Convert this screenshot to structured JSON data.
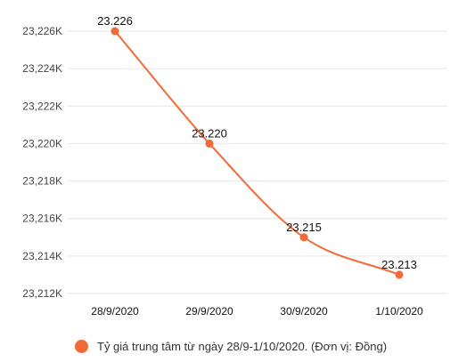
{
  "colors": {
    "series": "#f26a38",
    "grid": "#e6e6e6",
    "axis_text": "#444444",
    "label_text": "#111111"
  },
  "chart_data": {
    "type": "line",
    "title": "",
    "xlabel": "",
    "ylabel": "",
    "categories": [
      "28/9/2020",
      "29/9/2020",
      "30/9/2020",
      "1/10/2020"
    ],
    "series": [
      {
        "name": "Tỷ giá trung tâm từ ngày 28/9-1/10/2020. (Đơn vị: Đồng)",
        "values": [
          23226,
          23220,
          23215,
          23213
        ],
        "data_labels": [
          "23.226",
          "23.220",
          "23.215",
          "23.213"
        ]
      }
    ],
    "y_ticks": [
      23212,
      23214,
      23216,
      23218,
      23220,
      23222,
      23224,
      23226
    ],
    "y_tick_labels": [
      "23,212K",
      "23,214K",
      "23,216K",
      "23,218K",
      "23,220K",
      "23,222K",
      "23,224K",
      "23,226K"
    ],
    "ylim": [
      23212,
      23226
    ],
    "grid": true,
    "legend_position": "bottom-left",
    "smooth": true
  }
}
